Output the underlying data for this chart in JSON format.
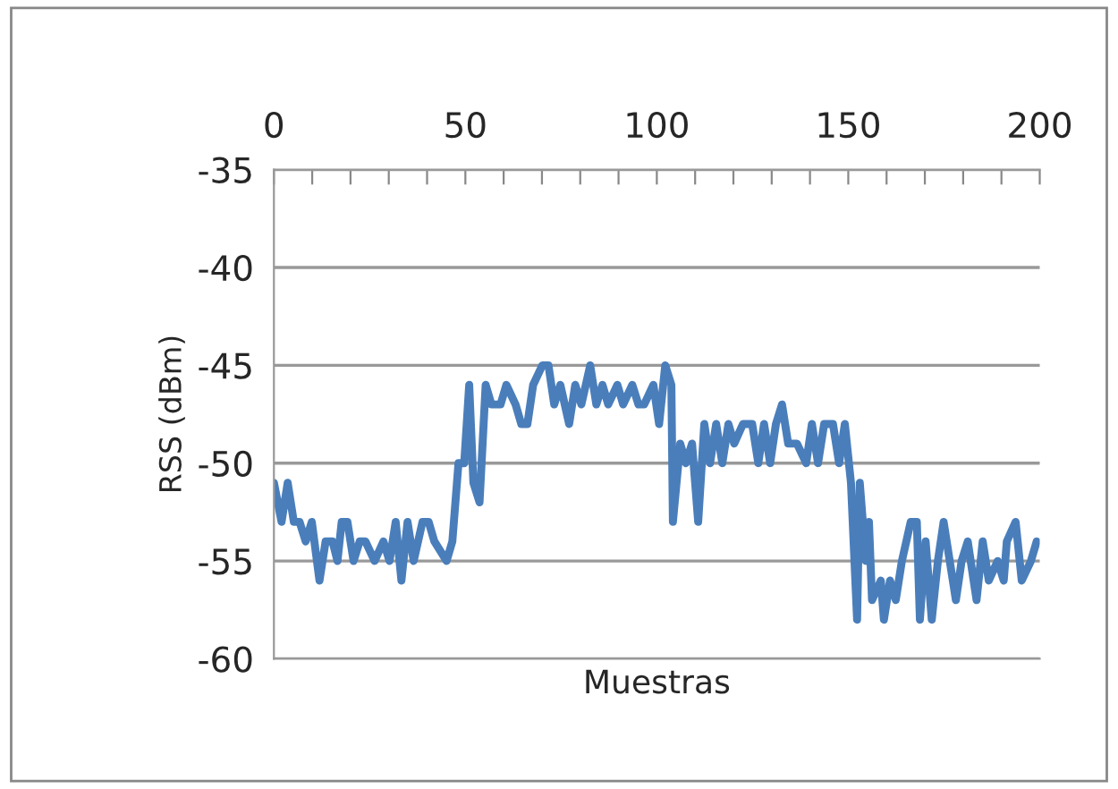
{
  "chart_data": {
    "type": "line",
    "xlabel": "Muestras",
    "ylabel": "RSS (dBm)",
    "xlim": [
      0,
      200
    ],
    "xticks": [
      0,
      {
        "value": 10,
        "label": null
      },
      {
        "value": 20,
        "label": null
      },
      {
        "value": 30,
        "label": null
      },
      {
        "value": 40,
        "label": null
      },
      50,
      {
        "value": 60,
        "label": null
      },
      {
        "value": 70,
        "label": null
      },
      {
        "value": 80,
        "label": null
      },
      {
        "value": 90,
        "label": null
      },
      100,
      {
        "value": 110,
        "label": null
      },
      {
        "value": 120,
        "label": null
      },
      {
        "value": 130,
        "label": null
      },
      {
        "value": 140,
        "label": null
      },
      150,
      {
        "value": 160,
        "label": null
      },
      {
        "value": 170,
        "label": null
      },
      {
        "value": 180,
        "label": null
      },
      {
        "value": 190,
        "label": null
      },
      200
    ],
    "ylim": [
      -60,
      -35
    ],
    "yticks": [
      -60,
      -55,
      -50,
      -45,
      -40,
      -35
    ],
    "grid": "y",
    "legend": false,
    "marker": "none",
    "line_style": "solid",
    "series": [
      {
        "color": "#4a7ebb",
        "x": [
          0,
          2,
          3.6,
          5.2,
          6.7,
          8.3,
          9.9,
          11.9,
          13.5,
          15.3,
          16.6,
          17.7,
          19.2,
          20.8,
          22.4,
          23.9,
          26.3,
          28.6,
          30.2,
          31.8,
          33.3,
          34.9,
          36.5,
          38.8,
          40.4,
          41.9,
          45.1,
          46.6,
          48.2,
          49.7,
          51,
          52.1,
          53.7,
          55.3,
          56.8,
          59.2,
          60.7,
          63.1,
          64.6,
          66.2,
          67.7,
          70.1,
          71.7,
          73.2,
          74.8,
          77.1,
          78.7,
          80.3,
          82.6,
          84.2,
          85.8,
          87.3,
          89.7,
          91.2,
          93.6,
          95.2,
          96.7,
          99.1,
          100.6,
          102.2,
          103.8,
          104.2,
          106.1,
          107.6,
          109.2,
          110.8,
          112.4,
          113.9,
          115.5,
          117.1,
          118.7,
          120.2,
          122.5,
          124.9,
          126.5,
          128,
          129.6,
          131.1,
          132.7,
          134.3,
          136.6,
          139,
          140.5,
          142.1,
          143.7,
          146,
          147.6,
          149.1,
          150.7,
          152.3,
          153,
          154.6,
          155.4,
          156.2,
          158.5,
          159.3,
          160.9,
          162.4,
          164,
          166.3,
          167.9,
          168.7,
          170.2,
          171.8,
          173.4,
          174.9,
          176.5,
          178.1,
          179.6,
          181.2,
          183.5,
          185.1,
          186.7,
          189,
          190.6,
          191.4,
          193.7,
          195.3,
          197.7,
          199.2
        ],
        "values": [
          -51,
          -53,
          -51,
          -53,
          -53,
          -54,
          -53,
          -56,
          -54,
          -54,
          -55,
          -53,
          -53,
          -55,
          -54,
          -54,
          -55,
          -54,
          -55,
          -53,
          -56,
          -53,
          -55,
          -53,
          -53,
          -54,
          -55,
          -54,
          -50,
          -50,
          -46,
          -51,
          -52,
          -46,
          -47,
          -47,
          -46,
          -47,
          -48,
          -48,
          -46,
          -45,
          -45,
          -47,
          -46,
          -48,
          -46,
          -47,
          -45,
          -47,
          -46,
          -47,
          -46,
          -47,
          -46,
          -47,
          -47,
          -46,
          -48,
          -45,
          -46,
          -53,
          -49,
          -50,
          -49,
          -53,
          -48,
          -50,
          -48,
          -50,
          -48,
          -49,
          -48,
          -48,
          -50,
          -48,
          -50,
          -48,
          -47,
          -49,
          -49,
          -50,
          -48,
          -50,
          -48,
          -48,
          -50,
          -48,
          -51,
          -58,
          -51,
          -55,
          -53,
          -57,
          -56,
          -58,
          -56,
          -57,
          -55,
          -53,
          -53,
          -58,
          -54,
          -58,
          -55,
          -53,
          -55,
          -57,
          -55,
          -54,
          -57,
          -54,
          -56,
          -55,
          -56,
          -54,
          -53,
          -56,
          -55,
          -54
        ]
      }
    ]
  }
}
